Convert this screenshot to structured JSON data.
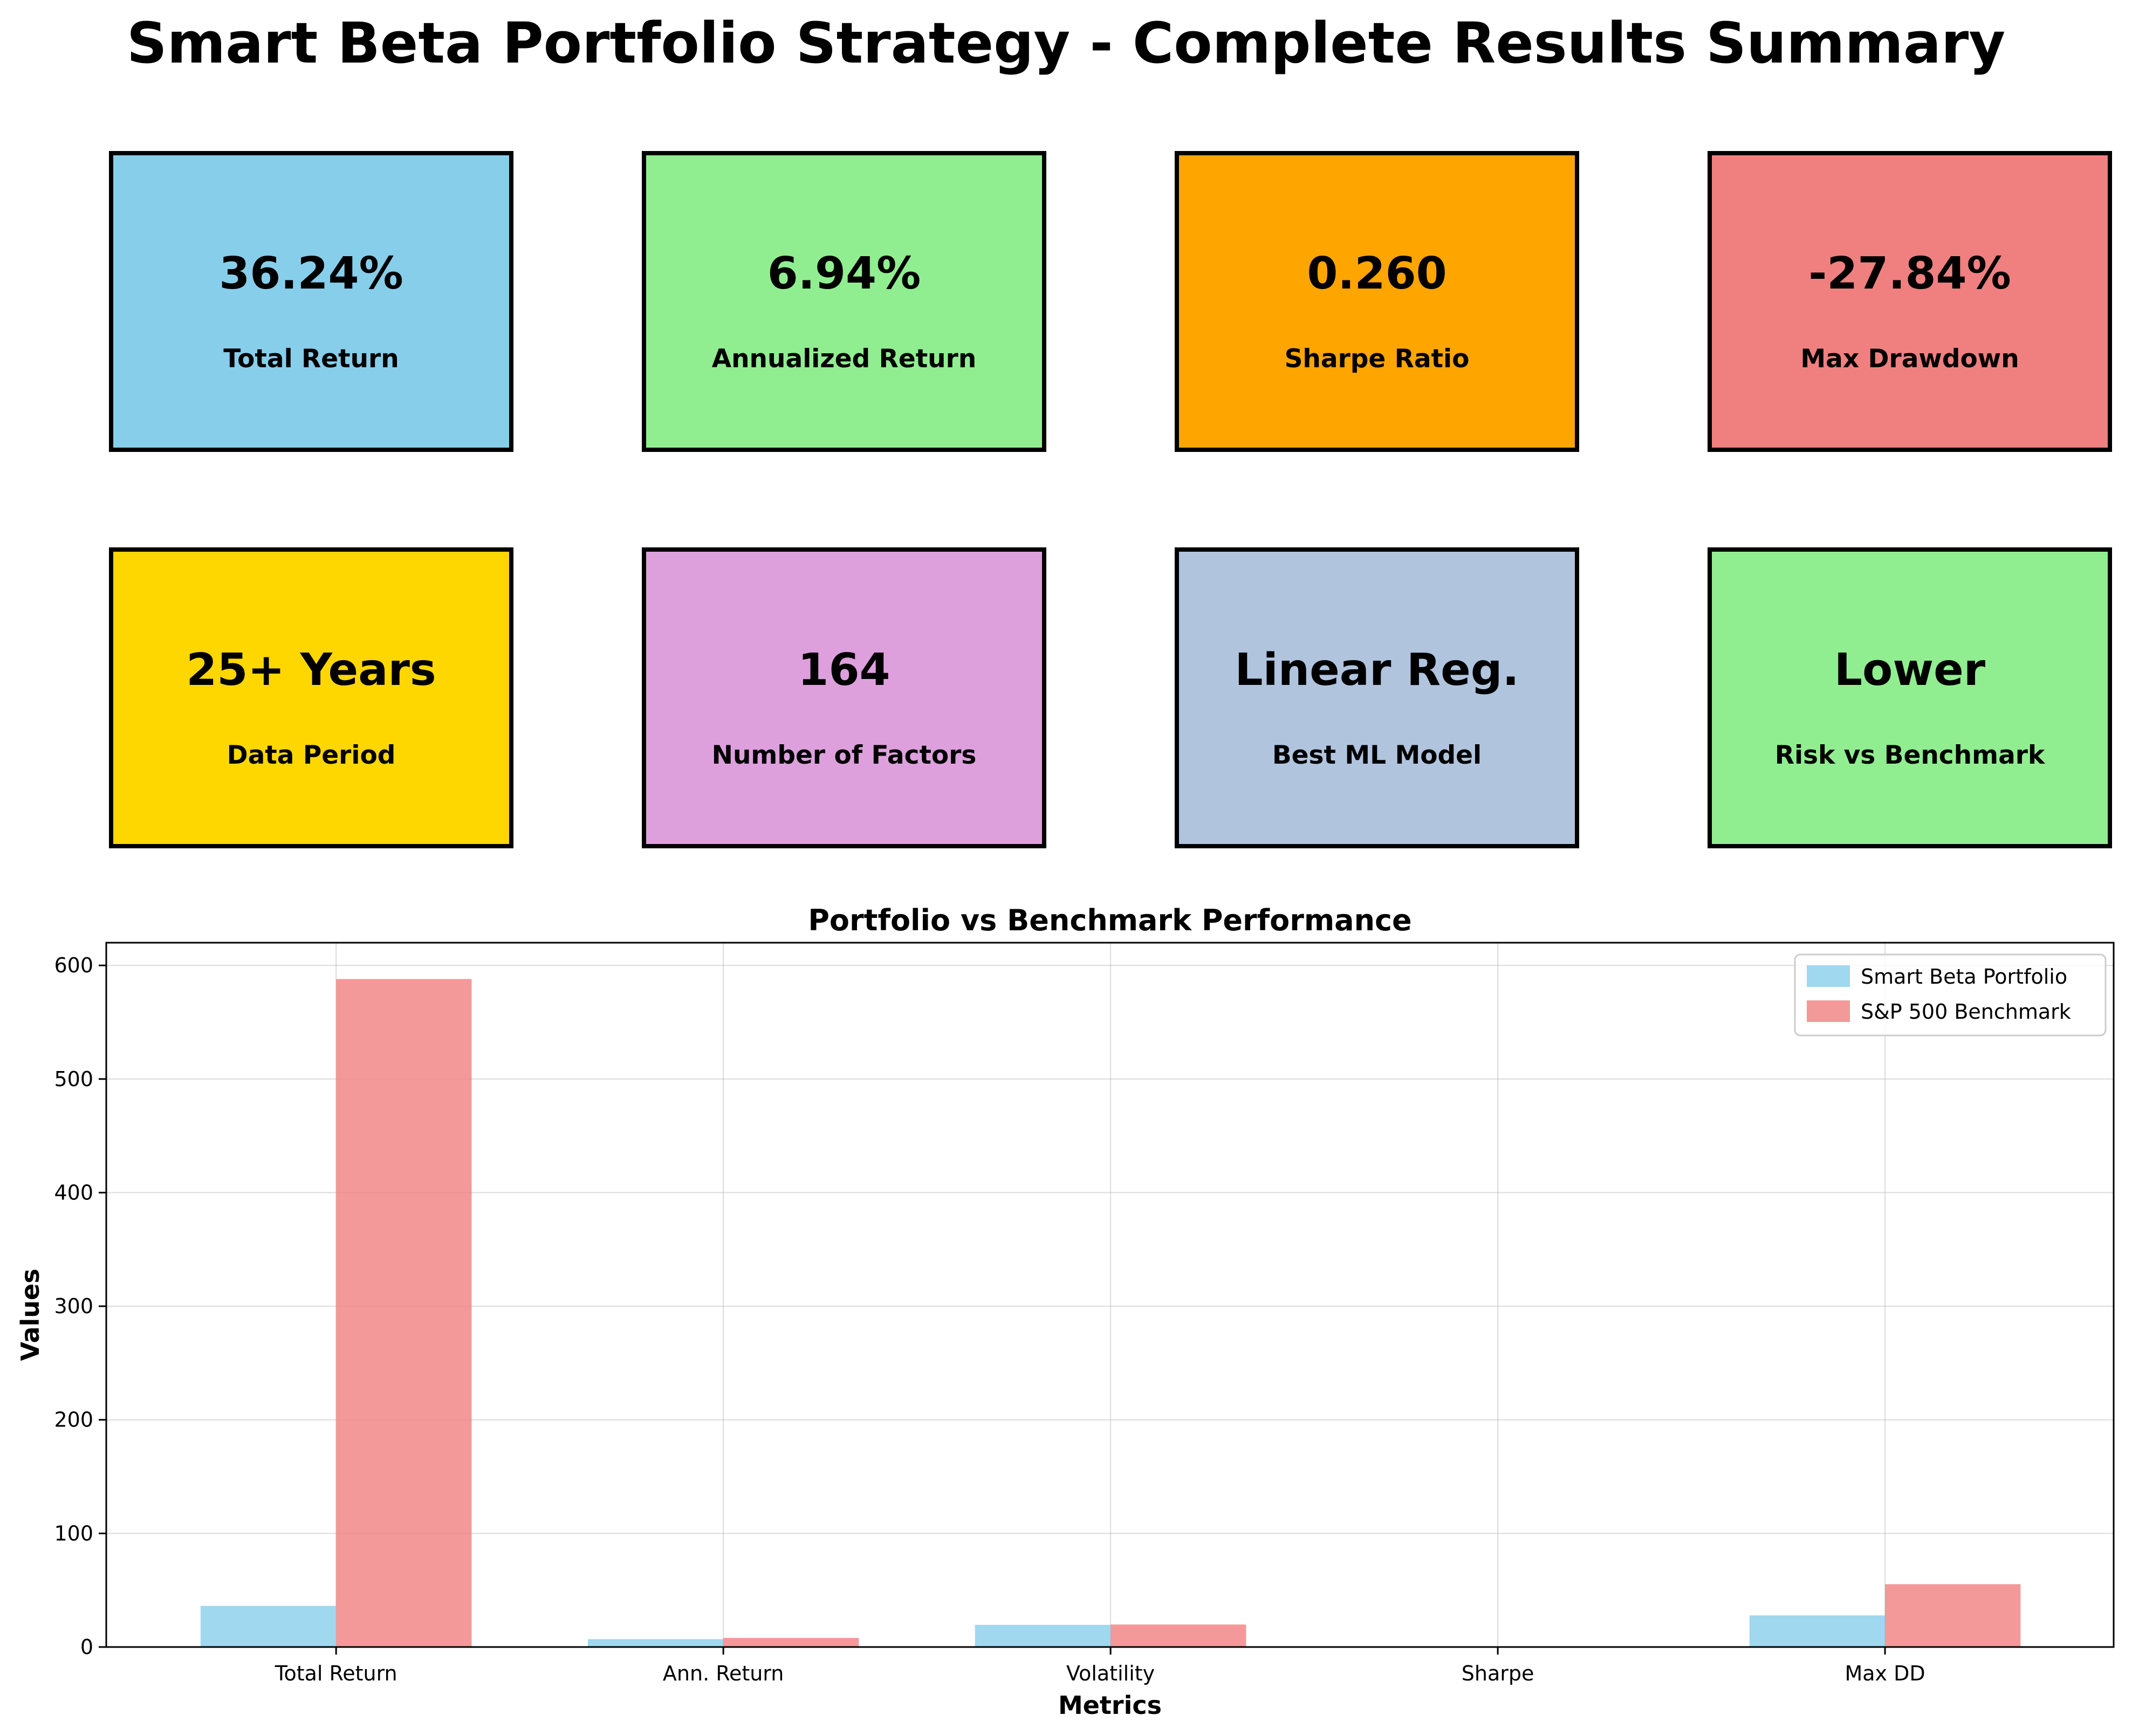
{
  "title": "Smart Beta Portfolio Strategy - Complete Results Summary",
  "cards": [
    {
      "value": "36.24%",
      "label": "Total Return",
      "color": "#87CEEB"
    },
    {
      "value": "6.94%",
      "label": "Annualized Return",
      "color": "#90EE90"
    },
    {
      "value": "0.260",
      "label": "Sharpe Ratio",
      "color": "#FFA500"
    },
    {
      "value": "-27.84%",
      "label": "Max Drawdown",
      "color": "#F08080"
    },
    {
      "value": "25+ Years",
      "label": "Data Period",
      "color": "#FFD700"
    },
    {
      "value": "164",
      "label": "Number of Factors",
      "color": "#DDA0DD"
    },
    {
      "value": "Linear Reg.",
      "label": "Best ML Model",
      "color": "#B0C4DE"
    },
    {
      "value": "Lower",
      "label": "Risk vs Benchmark",
      "color": "#90EE90"
    }
  ],
  "chart_data": {
    "type": "bar",
    "title": "Portfolio vs Benchmark Performance",
    "xlabel": "Metrics",
    "ylabel": "Values",
    "categories": [
      "Total Return",
      "Ann. Return",
      "Volatility",
      "Sharpe",
      "Max DD"
    ],
    "series": [
      {
        "name": "Smart Beta Portfolio",
        "color": "#87CEEB",
        "values": [
          36.24,
          6.94,
          19.5,
          0.26,
          27.84
        ]
      },
      {
        "name": "S&P 500 Benchmark",
        "color": "#F08080",
        "values": [
          588,
          8.0,
          19.8,
          0.4,
          55.3
        ]
      }
    ],
    "ylim": [
      0,
      620
    ],
    "yticks": [
      0,
      100,
      200,
      300,
      400,
      500,
      600
    ],
    "grid": true,
    "legend_position": "top-right"
  }
}
